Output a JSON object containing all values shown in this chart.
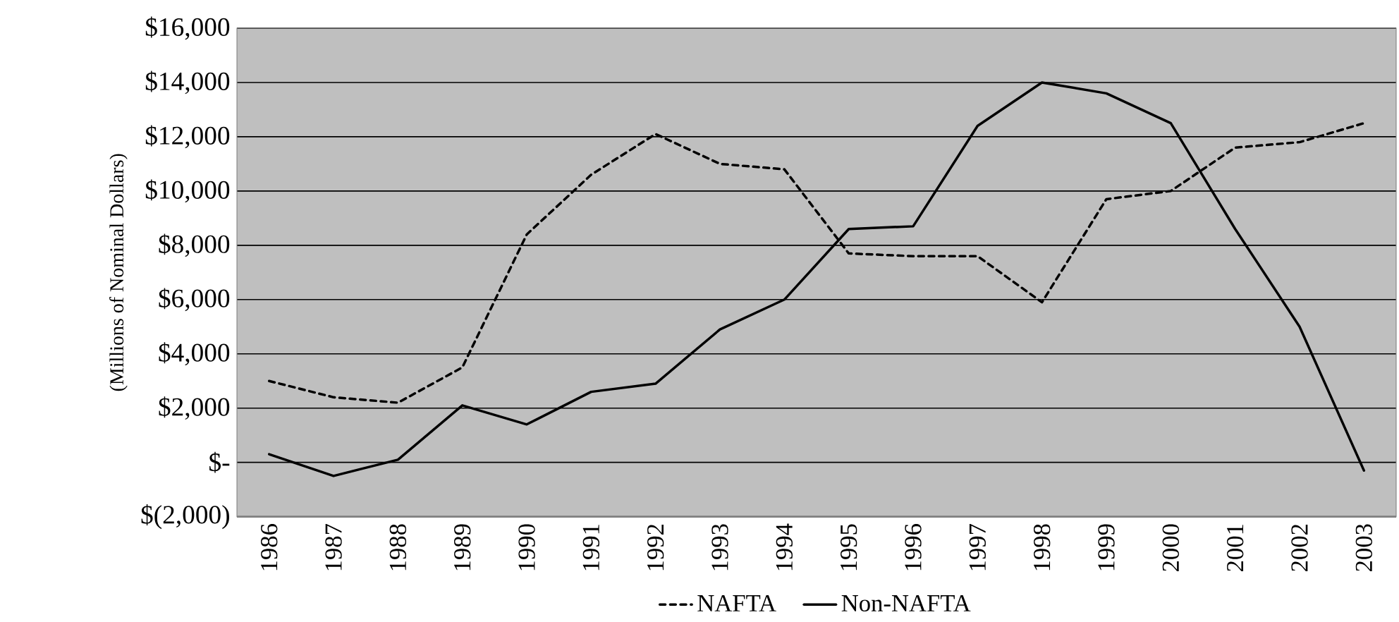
{
  "chart_data": {
    "type": "line",
    "ylabel": "(Millions of Nominal Dollars)",
    "categories": [
      "1986",
      "1987",
      "1988",
      "1989",
      "1990",
      "1991",
      "1992",
      "1993",
      "1994",
      "1995",
      "1996",
      "1997",
      "1998",
      "1999",
      "2000",
      "2001",
      "2002",
      "2003"
    ],
    "series": [
      {
        "name": "NAFTA",
        "color": "#000000",
        "line_style": "dashed",
        "values": [
          3000,
          2400,
          2200,
          3500,
          8400,
          10600,
          12100,
          11000,
          10800,
          7700,
          7600,
          7600,
          5900,
          9700,
          10000,
          11600,
          11800,
          12500
        ]
      },
      {
        "name": "Non-NAFTA",
        "color": "#000000",
        "line_style": "solid",
        "values": [
          300,
          -500,
          100,
          2100,
          1400,
          2600,
          2900,
          4900,
          6000,
          8600,
          8700,
          12400,
          14000,
          13600,
          12500,
          8600,
          5000,
          -300
        ]
      }
    ],
    "ylim": [
      -2000,
      16000
    ],
    "yticks": [
      {
        "value": -2000,
        "label": "$(2,000)"
      },
      {
        "value": 0,
        "label": "$-"
      },
      {
        "value": 2000,
        "label": "$2,000"
      },
      {
        "value": 4000,
        "label": "$4,000"
      },
      {
        "value": 6000,
        "label": "$6,000"
      },
      {
        "value": 8000,
        "label": "$8,000"
      },
      {
        "value": 10000,
        "label": "$10,000"
      },
      {
        "value": 12000,
        "label": "$12,000"
      },
      {
        "value": 14000,
        "label": "$14,000"
      },
      {
        "value": 16000,
        "label": "$16,000"
      }
    ],
    "grid": "y",
    "legend": "bottom",
    "marker": "none"
  }
}
